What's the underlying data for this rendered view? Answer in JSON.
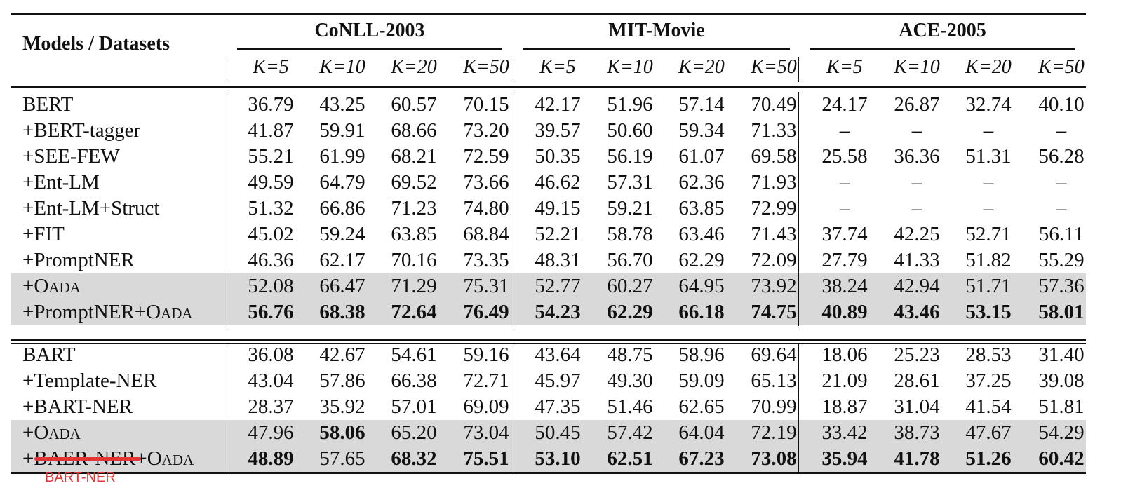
{
  "header": {
    "corner": "Models / Datasets",
    "datasets": [
      "CoNLL-2003",
      "MIT-Movie",
      "ACE-2005"
    ],
    "k_labels": [
      "K=5",
      "K=10",
      "K=20",
      "K=50"
    ]
  },
  "bert_block": [
    {
      "name": "BERT",
      "values": [
        "36.79",
        "43.25",
        "60.57",
        "70.15",
        "42.17",
        "51.96",
        "57.14",
        "70.49",
        "24.17",
        "26.87",
        "32.74",
        "40.10"
      ],
      "bold": []
    },
    {
      "name": "+BERT-tagger",
      "values": [
        "41.87",
        "59.91",
        "68.66",
        "73.20",
        "39.57",
        "50.60",
        "59.34",
        "71.33",
        "–",
        "–",
        "–",
        "–"
      ],
      "bold": []
    },
    {
      "name": "+SEE-FEW",
      "values": [
        "55.21",
        "61.99",
        "68.21",
        "72.59",
        "50.35",
        "56.19",
        "61.07",
        "69.58",
        "25.58",
        "36.36",
        "51.31",
        "56.28"
      ],
      "bold": []
    },
    {
      "name": "+Ent-LM",
      "values": [
        "49.59",
        "64.79",
        "69.52",
        "73.66",
        "46.62",
        "57.31",
        "62.36",
        "71.93",
        "–",
        "–",
        "–",
        "–"
      ],
      "bold": []
    },
    {
      "name": "+Ent-LM+Struct",
      "values": [
        "51.32",
        "66.86",
        "71.23",
        "74.80",
        "49.15",
        "59.21",
        "63.85",
        "72.99",
        "–",
        "–",
        "–",
        "–"
      ],
      "bold": []
    },
    {
      "name": "+FIT",
      "values": [
        "45.02",
        "59.24",
        "63.85",
        "68.84",
        "52.21",
        "58.78",
        "63.46",
        "71.43",
        "37.74",
        "42.25",
        "52.71",
        "56.11"
      ],
      "bold": []
    },
    {
      "name": "+PromptNER",
      "values": [
        "46.36",
        "62.17",
        "70.16",
        "73.35",
        "48.31",
        "56.70",
        "62.29",
        "72.09",
        "27.79",
        "41.33",
        "51.82",
        "55.29"
      ],
      "bold": []
    },
    {
      "name": "+OADA",
      "values": [
        "52.08",
        "66.47",
        "71.29",
        "75.31",
        "52.77",
        "60.27",
        "64.95",
        "73.92",
        "38.24",
        "42.94",
        "51.71",
        "57.36"
      ],
      "bold": [],
      "shaded": true
    },
    {
      "name": "+PromptNER+OADA",
      "values": [
        "56.76",
        "68.38",
        "72.64",
        "76.49",
        "54.23",
        "62.29",
        "66.18",
        "74.75",
        "40.89",
        "43.46",
        "53.15",
        "58.01"
      ],
      "bold": [
        0,
        1,
        2,
        3,
        4,
        5,
        6,
        7,
        8,
        9,
        10,
        11
      ],
      "shaded": true
    }
  ],
  "bart_block": [
    {
      "name": "BART",
      "values": [
        "36.08",
        "42.67",
        "54.61",
        "59.16",
        "43.64",
        "48.75",
        "58.96",
        "69.64",
        "18.06",
        "25.23",
        "28.53",
        "31.40"
      ],
      "bold": []
    },
    {
      "name": "+Template-NER",
      "values": [
        "43.04",
        "57.86",
        "66.38",
        "72.71",
        "45.97",
        "49.30",
        "59.09",
        "65.13",
        "21.09",
        "28.61",
        "37.25",
        "39.08"
      ],
      "bold": []
    },
    {
      "name": "+BART-NER",
      "values": [
        "28.37",
        "35.92",
        "57.01",
        "69.09",
        "47.35",
        "51.46",
        "62.65",
        "70.99",
        "18.87",
        "31.04",
        "41.54",
        "51.81"
      ],
      "bold": []
    },
    {
      "name": "+OADA",
      "values": [
        "47.96",
        "58.06",
        "65.20",
        "73.04",
        "50.45",
        "57.42",
        "64.04",
        "72.19",
        "33.42",
        "38.73",
        "47.67",
        "54.29"
      ],
      "bold": [
        1
      ],
      "shaded": true
    },
    {
      "name": "+BAER-NER+OADA",
      "values": [
        "48.89",
        "57.65",
        "68.32",
        "75.51",
        "53.10",
        "62.51",
        "67.23",
        "73.08",
        "35.94",
        "41.78",
        "51.26",
        "60.42"
      ],
      "bold": [
        0,
        2,
        3,
        4,
        5,
        6,
        7,
        8,
        9,
        10,
        11
      ],
      "shaded": true
    }
  ],
  "annotation": {
    "correction_text": "BART-NER",
    "color": "#e23636"
  }
}
